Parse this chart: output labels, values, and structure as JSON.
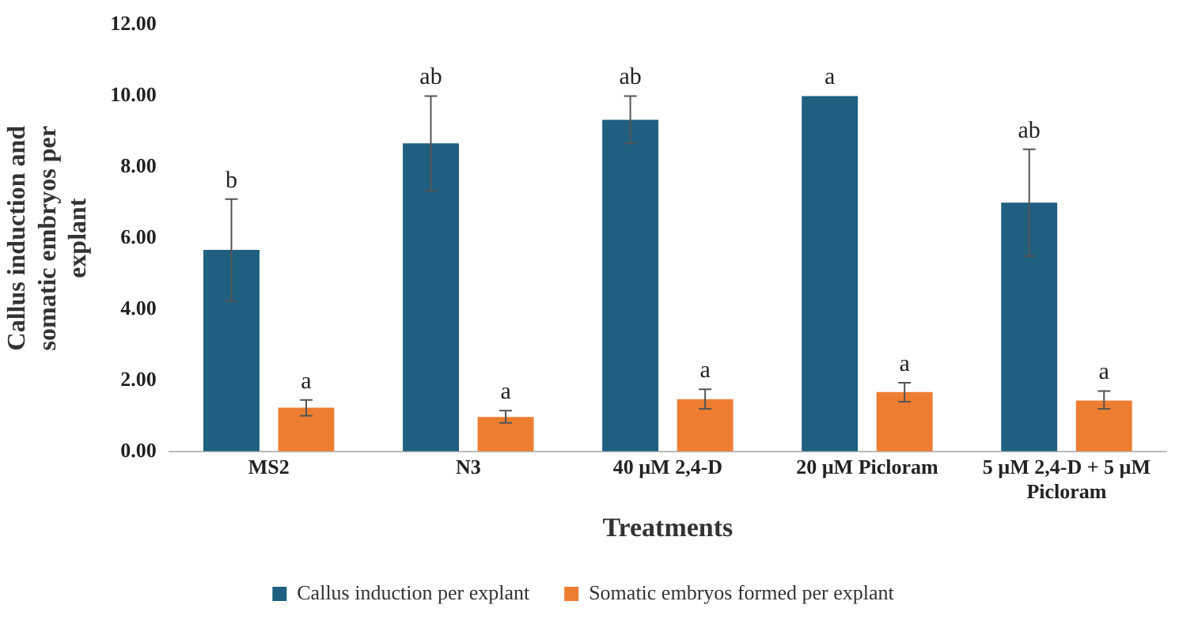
{
  "chart_data": {
    "type": "bar",
    "xlabel": "Treatments",
    "ylabel": "Callus induction and somatic embryos per explant",
    "categories": [
      "MS2",
      "N3",
      "40 µM 2,4-D",
      "20 µM Picloram",
      "5 µM 2,4-D + 5 µM Picloram"
    ],
    "series": [
      {
        "name": "Callus induction per explant",
        "color": "#1f5f80",
        "values": [
          5.67,
          8.67,
          9.33,
          10.0,
          7.0
        ],
        "errors": [
          [
            4.23,
            7.1
          ],
          [
            7.33,
            10.0
          ],
          [
            8.67,
            10.0
          ],
          null,
          [
            5.5,
            8.5
          ]
        ],
        "value_labels": [
          "b",
          "ab",
          "ab",
          "a",
          "ab"
        ]
      },
      {
        "name": "Somatic embryos formed per explant",
        "color": "#ed7d31",
        "values": [
          1.23,
          0.97,
          1.47,
          1.67,
          1.43
        ],
        "errors": [
          [
            1.0,
            1.45
          ],
          [
            0.8,
            1.15
          ],
          [
            1.2,
            1.75
          ],
          [
            1.4,
            1.93
          ],
          [
            1.2,
            1.7
          ]
        ],
        "value_labels": [
          "a",
          "a",
          "a",
          "a",
          "a"
        ]
      }
    ],
    "ylim": [
      0,
      12
    ],
    "yticks": [
      {
        "value": 0,
        "label": "0.00"
      },
      {
        "value": 2,
        "label": "2.00"
      },
      {
        "value": 4,
        "label": "4.00"
      },
      {
        "value": 6,
        "label": "6.00"
      },
      {
        "value": 8,
        "label": "8.00"
      },
      {
        "value": 10,
        "label": "10.00"
      },
      {
        "value": 12,
        "label": "12.00"
      }
    ],
    "grid": false,
    "legend": "bottom"
  }
}
